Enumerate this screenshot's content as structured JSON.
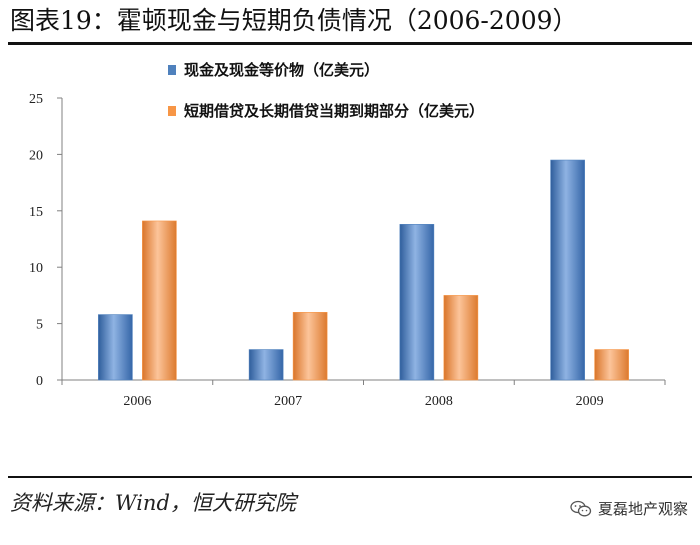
{
  "header": {
    "title": "图表19：霍顿现金与短期负债情况（2006-2009）"
  },
  "footer": {
    "source": "资料来源：Wind，恒大研究院",
    "watermark": "夏磊地产观察",
    "watermark_icon": "wechat-icon"
  },
  "colors": {
    "series_1": "#4f81bd",
    "series_2": "#f79646"
  },
  "chart_data": {
    "type": "bar",
    "categories": [
      "2006",
      "2007",
      "2008",
      "2009"
    ],
    "series": [
      {
        "name": "现金及现金等价物（亿美元）",
        "values": [
          5.8,
          2.7,
          13.8,
          19.5
        ]
      },
      {
        "name": "短期借贷及长期借贷当期到期部分（亿美元）",
        "values": [
          14.1,
          6.0,
          7.5,
          2.7
        ]
      }
    ],
    "yticks": [
      "0",
      "5",
      "10",
      "15",
      "20",
      "25"
    ],
    "ylim": [
      0,
      25
    ],
    "grid": false,
    "legend_position": "top"
  }
}
